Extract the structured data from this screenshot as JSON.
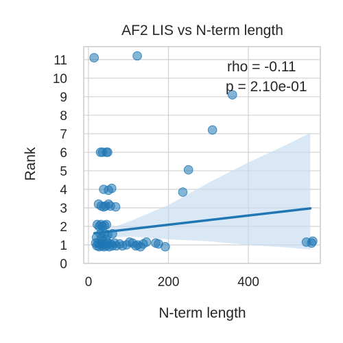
{
  "chart_data": {
    "type": "scatter",
    "title": "AF2 LIS vs N-term length",
    "xlabel": "N-term length",
    "ylabel": "Rank",
    "xlim": [
      -12,
      580
    ],
    "ylim": [
      0,
      11.7
    ],
    "xticks": [
      0,
      200,
      400
    ],
    "yticks": [
      0,
      1,
      2,
      3,
      4,
      5,
      6,
      7,
      8,
      9,
      10,
      11
    ],
    "grid": true,
    "annotations": [
      "rho = -0.11",
      "p = 2.10e-01"
    ],
    "colors": {
      "points": "#1f77b4",
      "line": "#1f77b4",
      "band": "#c6dbef",
      "grid": "#d0d0d0",
      "frame": "#cccccc"
    },
    "regression": {
      "x": [
        15,
        555
      ],
      "y": [
        1.63,
        2.97
      ]
    },
    "confidence_band": {
      "x": [
        15,
        60,
        100,
        200,
        300,
        400,
        500,
        555
      ],
      "upper": [
        2.05,
        1.95,
        2.25,
        3.15,
        4.35,
        5.45,
        6.45,
        7.05
      ],
      "lower": [
        1.25,
        1.4,
        1.45,
        1.3,
        1.2,
        1.0,
        0.85,
        0.75
      ]
    },
    "points": [
      {
        "x": 14,
        "y": 11.1
      },
      {
        "x": 122,
        "y": 11.2
      },
      {
        "x": 360,
        "y": 9.1
      },
      {
        "x": 310,
        "y": 7.2
      },
      {
        "x": 30,
        "y": 6.0
      },
      {
        "x": 35,
        "y": 6.0
      },
      {
        "x": 45,
        "y": 6.0
      },
      {
        "x": 48,
        "y": 6.0
      },
      {
        "x": 250,
        "y": 5.05
      },
      {
        "x": 236,
        "y": 3.85
      },
      {
        "x": 38,
        "y": 4.0
      },
      {
        "x": 50,
        "y": 3.95
      },
      {
        "x": 58,
        "y": 4.05
      },
      {
        "x": 25,
        "y": 3.2
      },
      {
        "x": 32,
        "y": 3.1
      },
      {
        "x": 38,
        "y": 3.05
      },
      {
        "x": 43,
        "y": 3.1
      },
      {
        "x": 50,
        "y": 3.2
      },
      {
        "x": 55,
        "y": 3.1
      },
      {
        "x": 68,
        "y": 3.05
      },
      {
        "x": 22,
        "y": 2.1
      },
      {
        "x": 27,
        "y": 2.0
      },
      {
        "x": 31,
        "y": 2.1
      },
      {
        "x": 35,
        "y": 2.0
      },
      {
        "x": 40,
        "y": 2.05
      },
      {
        "x": 45,
        "y": 2.1
      },
      {
        "x": 30,
        "y": 1.6
      },
      {
        "x": 40,
        "y": 1.6
      },
      {
        "x": 48,
        "y": 1.55
      },
      {
        "x": 60,
        "y": 1.6
      },
      {
        "x": 18,
        "y": 1.1
      },
      {
        "x": 21,
        "y": 0.95
      },
      {
        "x": 24,
        "y": 1.1
      },
      {
        "x": 27,
        "y": 0.9
      },
      {
        "x": 30,
        "y": 1.05
      },
      {
        "x": 33,
        "y": 0.95
      },
      {
        "x": 36,
        "y": 1.1
      },
      {
        "x": 39,
        "y": 0.9
      },
      {
        "x": 42,
        "y": 1.05
      },
      {
        "x": 45,
        "y": 0.95
      },
      {
        "x": 48,
        "y": 1.1
      },
      {
        "x": 52,
        "y": 0.9
      },
      {
        "x": 56,
        "y": 1.05
      },
      {
        "x": 60,
        "y": 0.95
      },
      {
        "x": 65,
        "y": 1.1
      },
      {
        "x": 70,
        "y": 0.95
      },
      {
        "x": 78,
        "y": 1.05
      },
      {
        "x": 85,
        "y": 0.95
      },
      {
        "x": 95,
        "y": 1.0
      },
      {
        "x": 103,
        "y": 1.15
      },
      {
        "x": 110,
        "y": 1.1
      },
      {
        "x": 118,
        "y": 0.95
      },
      {
        "x": 123,
        "y": 1.0
      },
      {
        "x": 130,
        "y": 0.9
      },
      {
        "x": 137,
        "y": 1.05
      },
      {
        "x": 145,
        "y": 1.15
      },
      {
        "x": 168,
        "y": 1.1
      },
      {
        "x": 175,
        "y": 1.05
      },
      {
        "x": 192,
        "y": 0.9
      },
      {
        "x": 20,
        "y": 1.4
      },
      {
        "x": 32,
        "y": 1.35
      },
      {
        "x": 44,
        "y": 1.3
      },
      {
        "x": 545,
        "y": 1.15
      },
      {
        "x": 558,
        "y": 1.1
      },
      {
        "x": 561,
        "y": 1.2
      }
    ]
  }
}
